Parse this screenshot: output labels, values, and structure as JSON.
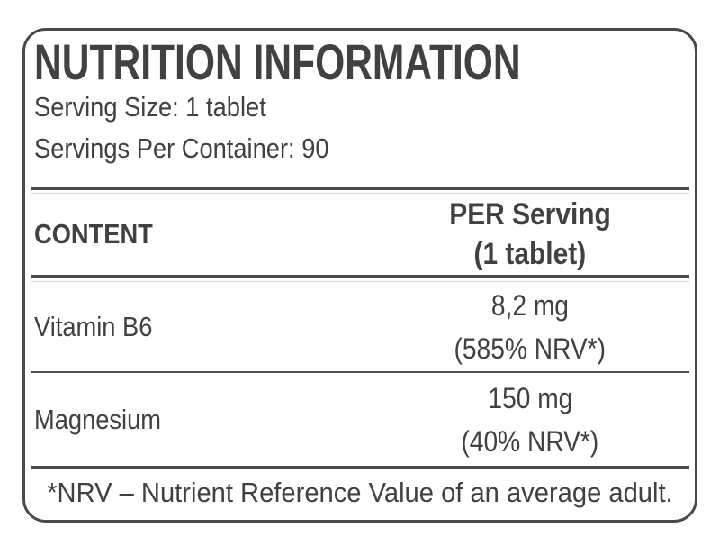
{
  "label": {
    "title": "NUTRITION INFORMATION",
    "serving_size": "Serving Size: 1 tablet",
    "servings_per_container": "Servings Per Container: 90",
    "table": {
      "content_header": "CONTENT",
      "per_serving_header_line1": "PER Serving",
      "per_serving_header_line2": "(1 tablet)",
      "rows": [
        {
          "name": "Vitamin B6",
          "amount": "8,2 mg",
          "nrv": "(585% NRV*)"
        },
        {
          "name": "Magnesium",
          "amount": "150 mg",
          "nrv": "(40% NRV*)"
        }
      ]
    },
    "footnote": "*NRV – Nutrient Reference Value of an average adult.",
    "colors": {
      "text": "#414042",
      "rule": "#4a4a4c",
      "background": "#ffffff"
    }
  }
}
